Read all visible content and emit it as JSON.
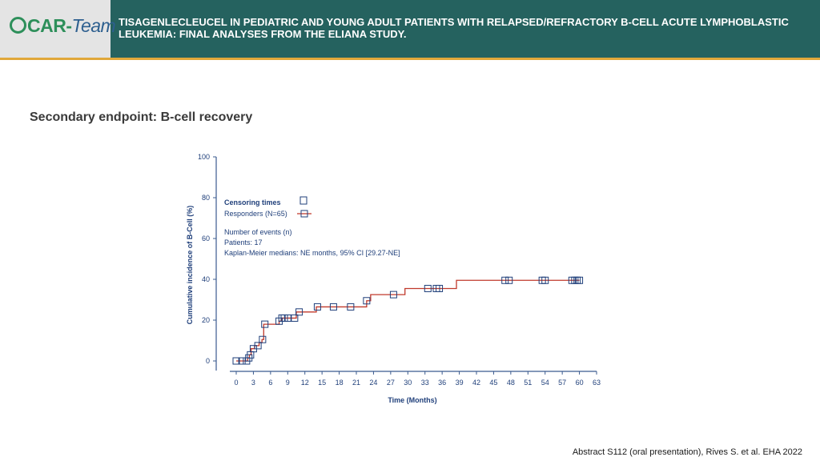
{
  "header": {
    "logo_text_1": "CAR-",
    "logo_text_2": "Team",
    "title": "TISAGENLECLEUCEL IN PEDIATRIC AND YOUNG ADULT PATIENTS WITH RELAPSED/REFRACTORY B-CELL ACUTE LYMPHOBLASTIC LEUKEMIA: FINAL ANALYSES FROM THE ELIANA STUDY."
  },
  "section_title": "Secondary endpoint: B-cell recovery",
  "footer_ref": "Abstract S112 (oral presentation), Rives S. et al. EHA 2022",
  "colors": {
    "header_bg": "#25625f",
    "accent_line": "#e0a83a",
    "curve": "#c0392b",
    "marker": "#1f3f7a",
    "axis": "#3b5b8f"
  },
  "chart_data": {
    "type": "line",
    "xlabel": "Time (Months)",
    "ylabel": "Cumulative incidence of B-Cell (%)",
    "xlim": [
      0,
      63
    ],
    "ylim": [
      0,
      100
    ],
    "xticks": [
      0,
      3,
      6,
      9,
      12,
      15,
      18,
      21,
      24,
      27,
      30,
      33,
      36,
      39,
      42,
      45,
      48,
      51,
      54,
      57,
      60,
      63
    ],
    "yticks": [
      0,
      20,
      40,
      60,
      80,
      100
    ],
    "legend": {
      "censoring_label": "Censoring times",
      "series_label": "Responders (N=65)"
    },
    "annotations": [
      "Number of events (n)",
      "Patients: 17",
      "Kaplan-Meier medians: NE months, 95% CI [29.27-NE]"
    ],
    "series": [
      {
        "name": "Responders (N=65)",
        "step_x": [
          0,
          1.5,
          2,
          2.3,
          2.6,
          3.2,
          4,
          4.5,
          4.8,
          7.5,
          8,
          10.5,
          14,
          22.8,
          23.5,
          27.5,
          29.5,
          38.5,
          60
        ],
        "step_y": [
          0,
          0,
          1.5,
          3,
          6,
          7.5,
          9,
          10.5,
          18,
          19.5,
          21,
          24,
          26.5,
          29.5,
          32.5,
          32.5,
          35.5,
          39.5,
          39.5
        ]
      }
    ],
    "censor_x": [
      0,
      1,
      1.8,
      2.2,
      2.5,
      3,
      3.8,
      4.6,
      5,
      7.5,
      8,
      8.4,
      9,
      10.2,
      11,
      14.2,
      17,
      20,
      22.8,
      27.5,
      33.5,
      35,
      35.5,
      47,
      47.7,
      53.5,
      54,
      58.7,
      59.2,
      59.6,
      60
    ]
  }
}
